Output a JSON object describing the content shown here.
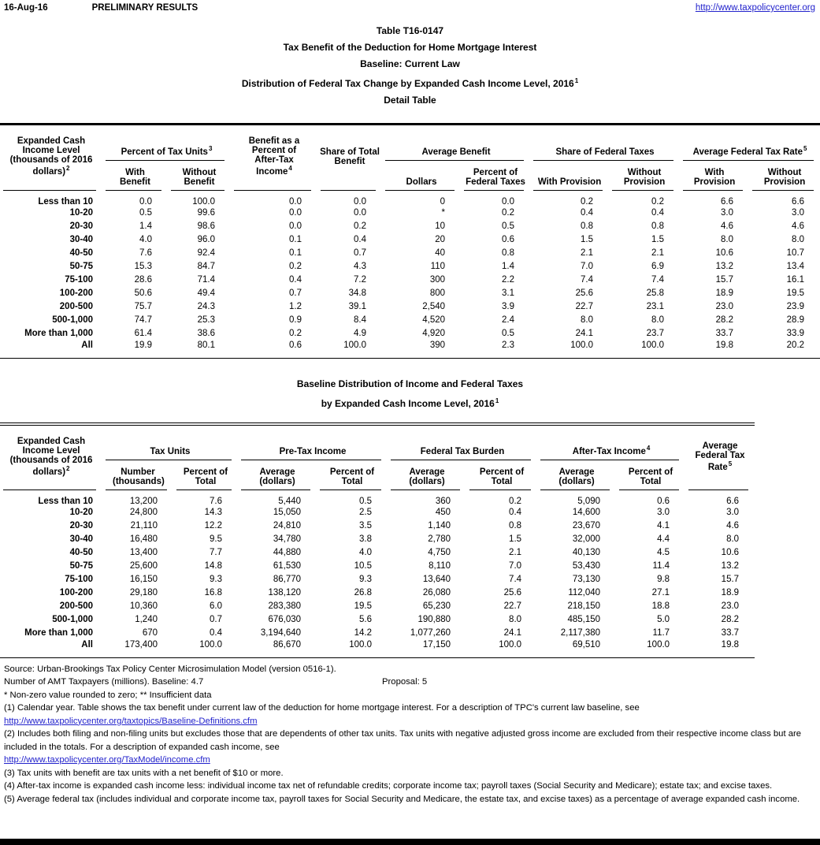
{
  "colors": {
    "link": "#2222cc",
    "ink": "#000000"
  },
  "page_header": {
    "date": "16-Aug-16",
    "status": "PRELIMINARY RESULTS",
    "link": "http://www.taxpolicycenter.org"
  },
  "title_block": {
    "line1": "Table T16-0147",
    "line2": "Tax Benefit of the Deduction for Home Mortgage Interest",
    "line3": "Baseline: Current Law",
    "line4": "Distribution of Federal Tax Change by Expanded Cash Income Level, 2016",
    "line4_sup": "1",
    "line5": "Detail Table"
  },
  "detail_table": {
    "row_header_label": "Expanded Cash Income Level (thousands of 2016 dollars)",
    "row_header_sup": "2",
    "groups": [
      {
        "label": "Percent of Tax Units",
        "sup": "3"
      },
      {
        "label": "Benefit as a Percent of After-Tax Income",
        "sup": "4"
      },
      {
        "label": "Share of Total Benefit"
      },
      {
        "label": "Average Benefit"
      },
      {
        "label": "Share of Federal Taxes"
      },
      {
        "label": "Average Federal Tax Rate",
        "sup": "5"
      }
    ],
    "sub_headers": [
      "With Benefit",
      "Without Benefit",
      "Dollars",
      "Percent of Federal Taxes",
      "With Provision",
      "Without Provision",
      "With Provision",
      "Without Provision"
    ],
    "rows": [
      {
        "label": "Less than 10",
        "values": [
          "0.0",
          "100.0",
          "0.0",
          "0.0",
          "0",
          "0.0",
          "0.2",
          "0.2",
          "6.6",
          "6.6"
        ]
      },
      {
        "label": "10-20",
        "values": [
          "0.5",
          "99.6",
          "0.0",
          "0.0",
          "*",
          "0.2",
          "0.4",
          "0.4",
          "3.0",
          "3.0"
        ]
      },
      {
        "label": "20-30",
        "values": [
          "1.4",
          "98.6",
          "0.0",
          "0.2",
          "10",
          "0.5",
          "0.8",
          "0.8",
          "4.6",
          "4.6"
        ]
      },
      {
        "label": "30-40",
        "values": [
          "4.0",
          "96.0",
          "0.1",
          "0.4",
          "20",
          "0.6",
          "1.5",
          "1.5",
          "8.0",
          "8.0"
        ]
      },
      {
        "label": "40-50",
        "values": [
          "7.6",
          "92.4",
          "0.1",
          "0.7",
          "40",
          "0.8",
          "2.1",
          "2.1",
          "10.6",
          "10.7"
        ]
      },
      {
        "label": "50-75",
        "values": [
          "15.3",
          "84.7",
          "0.2",
          "4.3",
          "110",
          "1.4",
          "7.0",
          "6.9",
          "13.2",
          "13.4"
        ]
      },
      {
        "label": "75-100",
        "values": [
          "28.6",
          "71.4",
          "0.4",
          "7.2",
          "300",
          "2.2",
          "7.4",
          "7.4",
          "15.7",
          "16.1"
        ]
      },
      {
        "label": "100-200",
        "values": [
          "50.6",
          "49.4",
          "0.7",
          "34.8",
          "800",
          "3.1",
          "25.6",
          "25.8",
          "18.9",
          "19.5"
        ]
      },
      {
        "label": "200-500",
        "values": [
          "75.7",
          "24.3",
          "1.2",
          "39.1",
          "2,540",
          "3.9",
          "22.7",
          "23.1",
          "23.0",
          "23.9"
        ]
      },
      {
        "label": "500-1,000",
        "values": [
          "74.7",
          "25.3",
          "0.9",
          "8.4",
          "4,520",
          "2.4",
          "8.0",
          "8.0",
          "28.2",
          "28.9"
        ]
      },
      {
        "label": "More than 1,000",
        "values": [
          "61.4",
          "38.6",
          "0.2",
          "4.9",
          "4,920",
          "0.5",
          "24.1",
          "23.7",
          "33.7",
          "33.9"
        ]
      },
      {
        "label": "All",
        "values": [
          "19.9",
          "80.1",
          "0.6",
          "100.0",
          "390",
          "2.3",
          "100.0",
          "100.0",
          "19.8",
          "20.2"
        ]
      }
    ]
  },
  "baseline_table": {
    "title_line1": "Baseline Distribution of Income and Federal Taxes",
    "title_line2": "by Expanded Cash Income Level, 2016",
    "title_sup": "1",
    "row_header_label": "Expanded Cash Income Level (thousands of 2016 dollars)",
    "row_header_sup": "2",
    "groups": [
      {
        "label": "Tax Units"
      },
      {
        "label": "Pre-Tax Income"
      },
      {
        "label": "Federal Tax Burden"
      },
      {
        "label": "After-Tax Income",
        "sup": "4"
      },
      {
        "label": "Average Federal Tax Rate",
        "sup": "5"
      }
    ],
    "sub_headers": [
      "Number (thousands)",
      "Percent of Total",
      "Average (dollars)",
      "Percent of Total",
      "Average (dollars)",
      "Percent of Total",
      "Average (dollars)",
      "Percent of Total"
    ],
    "rows": [
      {
        "label": "Less than 10",
        "values": [
          "13,200",
          "7.6",
          "5,440",
          "0.5",
          "360",
          "0.2",
          "5,090",
          "0.6",
          "6.6"
        ]
      },
      {
        "label": "10-20",
        "values": [
          "24,800",
          "14.3",
          "15,050",
          "2.5",
          "450",
          "0.4",
          "14,600",
          "3.0",
          "3.0"
        ]
      },
      {
        "label": "20-30",
        "values": [
          "21,110",
          "12.2",
          "24,810",
          "3.5",
          "1,140",
          "0.8",
          "23,670",
          "4.1",
          "4.6"
        ]
      },
      {
        "label": "30-40",
        "values": [
          "16,480",
          "9.5",
          "34,780",
          "3.8",
          "2,780",
          "1.5",
          "32,000",
          "4.4",
          "8.0"
        ]
      },
      {
        "label": "40-50",
        "values": [
          "13,400",
          "7.7",
          "44,880",
          "4.0",
          "4,750",
          "2.1",
          "40,130",
          "4.5",
          "10.6"
        ]
      },
      {
        "label": "50-75",
        "values": [
          "25,600",
          "14.8",
          "61,530",
          "10.5",
          "8,110",
          "7.0",
          "53,430",
          "11.4",
          "13.2"
        ]
      },
      {
        "label": "75-100",
        "values": [
          "16,150",
          "9.3",
          "86,770",
          "9.3",
          "13,640",
          "7.4",
          "73,130",
          "9.8",
          "15.7"
        ]
      },
      {
        "label": "100-200",
        "values": [
          "29,180",
          "16.8",
          "138,120",
          "26.8",
          "26,080",
          "25.6",
          "112,040",
          "27.1",
          "18.9"
        ]
      },
      {
        "label": "200-500",
        "values": [
          "10,360",
          "6.0",
          "283,380",
          "19.5",
          "65,230",
          "22.7",
          "218,150",
          "18.8",
          "23.0"
        ]
      },
      {
        "label": "500-1,000",
        "values": [
          "1,240",
          "0.7",
          "676,030",
          "5.6",
          "190,880",
          "8.0",
          "485,150",
          "5.0",
          "28.2"
        ]
      },
      {
        "label": "More than 1,000",
        "values": [
          "670",
          "0.4",
          "3,194,640",
          "14.2",
          "1,077,260",
          "24.1",
          "2,117,380",
          "11.7",
          "33.7"
        ]
      },
      {
        "label": "All",
        "values": [
          "173,400",
          "100.0",
          "86,670",
          "100.0",
          "17,150",
          "100.0",
          "69,510",
          "100.0",
          "19.8"
        ]
      }
    ]
  },
  "footnotes": {
    "source": "Source: Urban-Brookings Tax Policy Center Microsimulation Model (version 0516-1).",
    "amt_label": "Number of AMT Taxpayers (millions).  Baseline: 4.7",
    "amt_proposal": "Proposal: 5",
    "legend": "* Non-zero value rounded to zero; ** Insufficient data",
    "note1": "(1) Calendar year. Table shows the tax benefit under current law of the deduction for home mortgage interest. For a description of TPC's current law baseline, see",
    "link1": "http://www.taxpolicycenter.org/taxtopics/Baseline-Definitions.cfm",
    "note2": "(2) Includes both filing and non-filing units but excludes those that are dependents of other tax units. Tax units with negative adjusted gross income are excluded from their respective income class but are included in the totals. For a description of expanded cash income, see",
    "link2": "http://www.taxpolicycenter.org/TaxModel/income.cfm",
    "note3": "(3) Tax units with benefit are tax units with a net benefit of $10 or more.",
    "note4": "(4) After-tax income is expanded cash income less: individual income tax net of refundable credits; corporate income tax; payroll taxes (Social Security and Medicare); estate tax; and excise taxes.",
    "note5": "(5) Average federal tax (includes individual and corporate income tax, payroll taxes for Social Security and Medicare, the estate tax, and excise taxes) as a percentage of average expanded cash income."
  }
}
